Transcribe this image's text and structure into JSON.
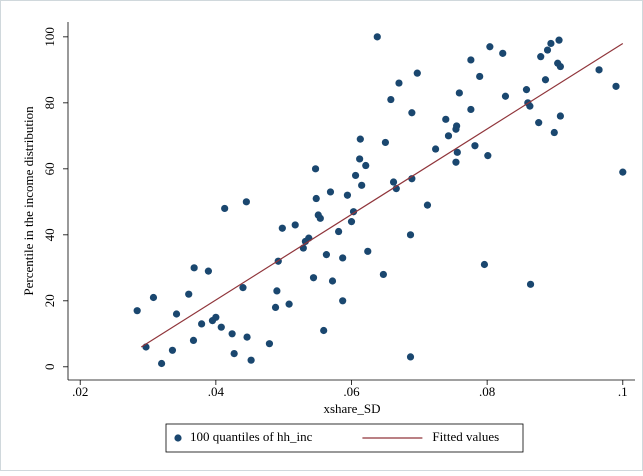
{
  "chart_data": {
    "type": "scatter",
    "x_label": "xshare_SD",
    "y_label": "Percentile in the income distribution",
    "xlim": [
      0.0182,
      0.1018
    ],
    "ylim": [
      -4,
      104.5
    ],
    "xticks": [
      {
        "value": 0.02,
        "label": ".02"
      },
      {
        "value": 0.04,
        "label": ".04"
      },
      {
        "value": 0.06,
        "label": ".06"
      },
      {
        "value": 0.08,
        "label": ".08"
      },
      {
        "value": 0.1,
        "label": ".1"
      }
    ],
    "yticks": [
      0,
      20,
      40,
      60,
      80,
      100
    ],
    "grid": false,
    "legend": "bottom",
    "series": [
      {
        "name": "100 quantiles of hh_inc",
        "type": "scatter",
        "color": "#1a476f",
        "x": [
          0.0284,
          0.0297,
          0.0308,
          0.032,
          0.0336,
          0.0342,
          0.036,
          0.0367,
          0.0368,
          0.0379,
          0.0389,
          0.0395,
          0.04,
          0.0408,
          0.0413,
          0.0424,
          0.0427,
          0.044,
          0.0445,
          0.0446,
          0.0452,
          0.0479,
          0.0488,
          0.049,
          0.0492,
          0.0498,
          0.0508,
          0.0517,
          0.0529,
          0.0532,
          0.0537,
          0.0544,
          0.0547,
          0.0548,
          0.0551,
          0.0554,
          0.0559,
          0.0563,
          0.0569,
          0.0572,
          0.0581,
          0.0587,
          0.0587,
          0.0594,
          0.06,
          0.0603,
          0.0606,
          0.0612,
          0.0613,
          0.0615,
          0.0621,
          0.0624,
          0.0638,
          0.0647,
          0.065,
          0.0658,
          0.0662,
          0.0666,
          0.067,
          0.0687,
          0.0687,
          0.0689,
          0.0689,
          0.0697,
          0.0712,
          0.0724,
          0.0739,
          0.0743,
          0.0754,
          0.0754,
          0.0755,
          0.0756,
          0.0759,
          0.0776,
          0.0776,
          0.0782,
          0.0789,
          0.0796,
          0.0801,
          0.0804,
          0.0823,
          0.0827,
          0.0858,
          0.086,
          0.0863,
          0.0864,
          0.0876,
          0.0879,
          0.0886,
          0.0889,
          0.0894,
          0.0899,
          0.0904,
          0.0906,
          0.0908,
          0.0908,
          0.0965,
          0.099,
          0.1
        ],
        "values": [
          17,
          6,
          21,
          1,
          5,
          16,
          22,
          8,
          30,
          13,
          29,
          14,
          15,
          12,
          48,
          10,
          4,
          24,
          50,
          9,
          2,
          7,
          18,
          23,
          32,
          42,
          19,
          43,
          36,
          38,
          39,
          27,
          60,
          51,
          46,
          45,
          11,
          34,
          53,
          26,
          41,
          33,
          20,
          52,
          44,
          47,
          58,
          63,
          69,
          55,
          61,
          35,
          100,
          28,
          68,
          81,
          56,
          54,
          86,
          3,
          40,
          77,
          57,
          89,
          49,
          66,
          75,
          70,
          72,
          62,
          73,
          65,
          83,
          93,
          78,
          67,
          88,
          31,
          64,
          97,
          95,
          82,
          84,
          80,
          79,
          25,
          74,
          94,
          87,
          96,
          98,
          71,
          92,
          99,
          91,
          76,
          90,
          85,
          59
        ]
      },
      {
        "name": "Fitted values",
        "type": "line",
        "color": "#90353b",
        "x": [
          0.029,
          0.1
        ],
        "values": [
          6,
          98
        ]
      }
    ]
  }
}
